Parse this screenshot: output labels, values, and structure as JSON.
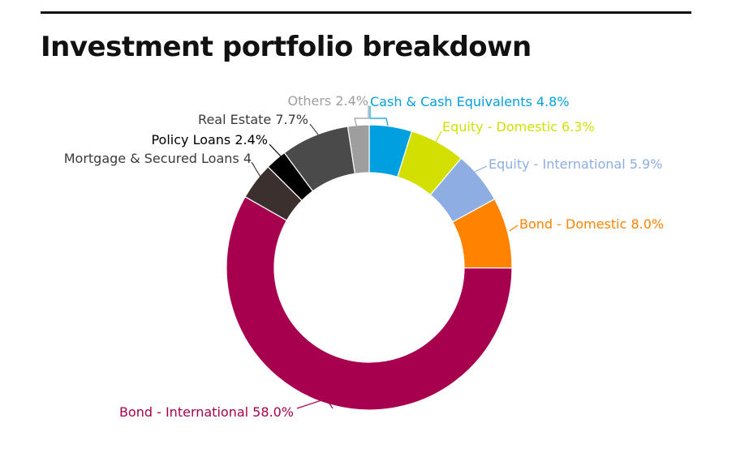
{
  "title": "Investment portfolio breakdown",
  "chart_data": {
    "type": "pie",
    "variant": "donut",
    "title": "Investment portfolio breakdown",
    "slices": [
      {
        "label": "Cash & Cash Equivalents 4.8%",
        "value": 4.8,
        "color": "#009FDF"
      },
      {
        "label": "Equity - Domestic 6.3%",
        "value": 6.3,
        "color": "#D2DF00"
      },
      {
        "label": "Equity - International 5.9%",
        "value": 5.9,
        "color": "#8EADE3"
      },
      {
        "label": "Bond - Domestic 8.0%",
        "value": 8.0,
        "color": "#FF8200"
      },
      {
        "label": "Bond - International 58.0%",
        "value": 58.0,
        "color": "#A6004E"
      },
      {
        "label": "Mortgage & Secured Loans 4",
        "value": 4.2,
        "color": "#3B302D"
      },
      {
        "label": "Policy Loans 2.4%",
        "value": 2.4,
        "color": "#000000"
      },
      {
        "label": "Real Estate 7.7%",
        "value": 7.7,
        "color": "#4A4A4A"
      },
      {
        "label": "Others 2.4%",
        "value": 2.4,
        "color": "#9E9E9E"
      }
    ]
  }
}
